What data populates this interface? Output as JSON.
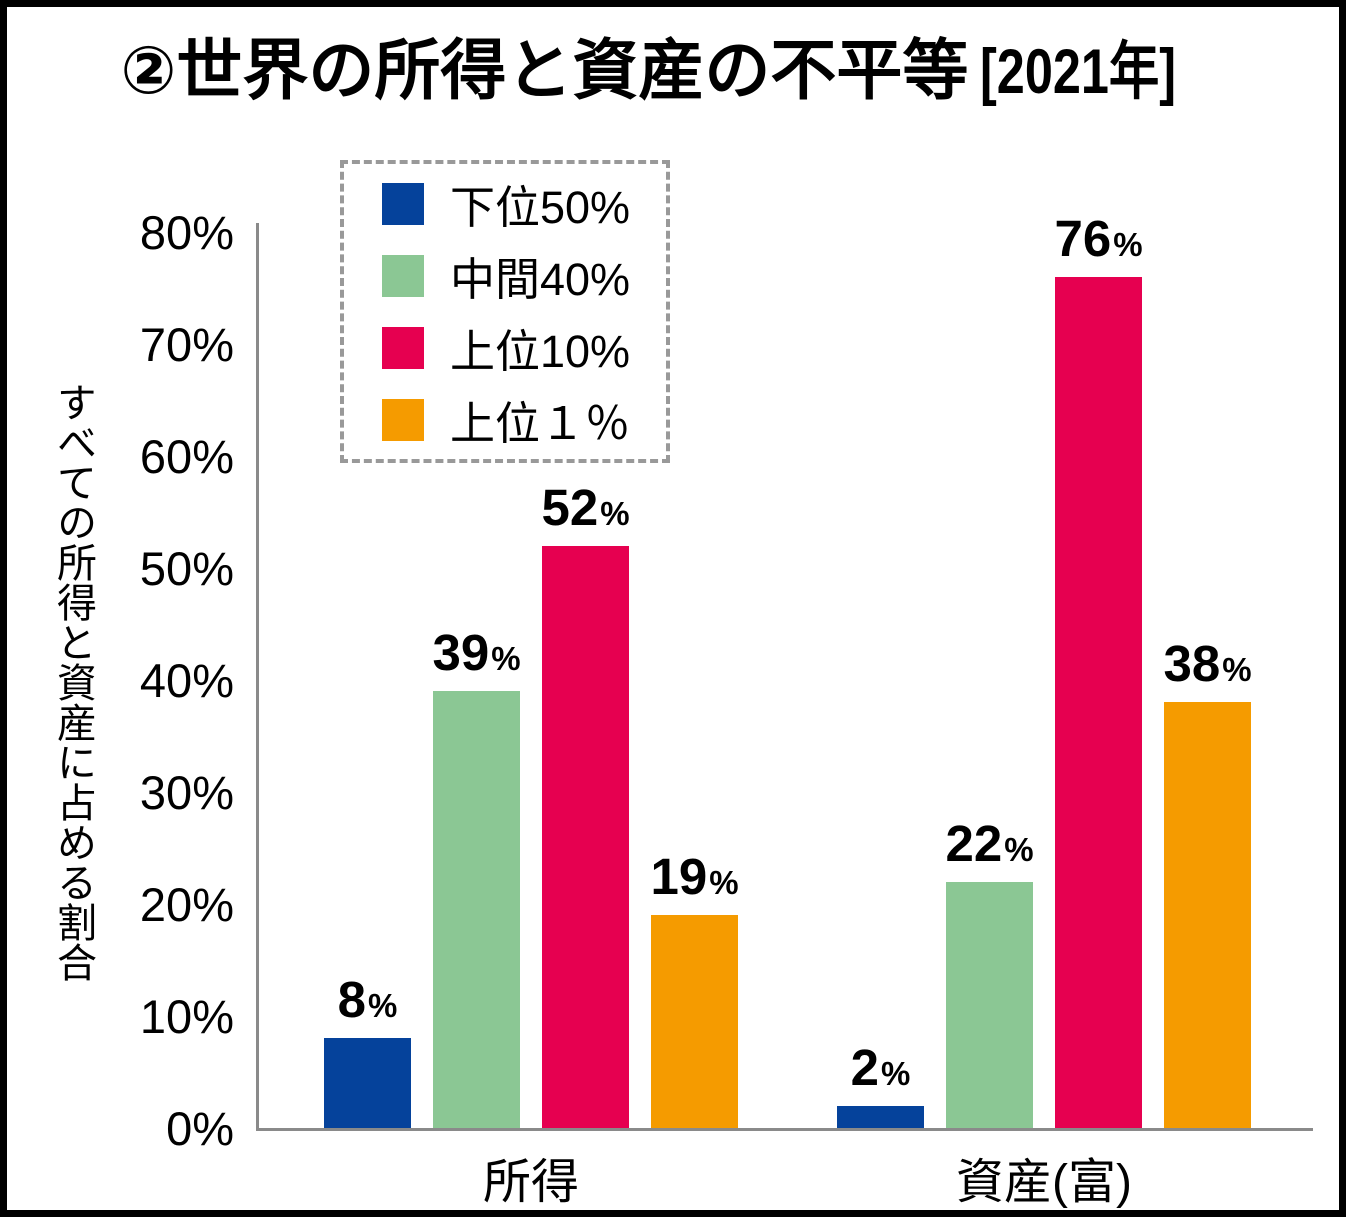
{
  "title": {
    "main": "②世界の所得と資産の不平等",
    "year": "[2021年]"
  },
  "y_axis_label": "すべての所得と資産に占める割合",
  "chart_data": {
    "type": "bar",
    "title": "②世界の所得と資産の不平等 [2021年]",
    "categories": [
      "所得",
      "資産(富)"
    ],
    "series": [
      {
        "name": "下位50%",
        "color": "#05429b",
        "values": [
          8,
          2
        ]
      },
      {
        "name": "中間40%",
        "color": "#8bc794",
        "values": [
          39,
          22
        ]
      },
      {
        "name": "上位10%",
        "color": "#e60050",
        "values": [
          52,
          76
        ]
      },
      {
        "name": "上位１％",
        "color": "#f59b00",
        "values": [
          19,
          38
        ]
      }
    ],
    "ylabel": "すべての所得と資産に占める割合",
    "ylim": [
      0,
      80
    ],
    "yticks": [
      "0%",
      "10%",
      "20%",
      "30%",
      "40%",
      "50%",
      "60%",
      "70%",
      "80%"
    ],
    "ytick_values": [
      0,
      10,
      20,
      30,
      40,
      50,
      60,
      70,
      80
    ],
    "value_suffix": "%",
    "grid": false,
    "legend_position": "upper-left"
  }
}
